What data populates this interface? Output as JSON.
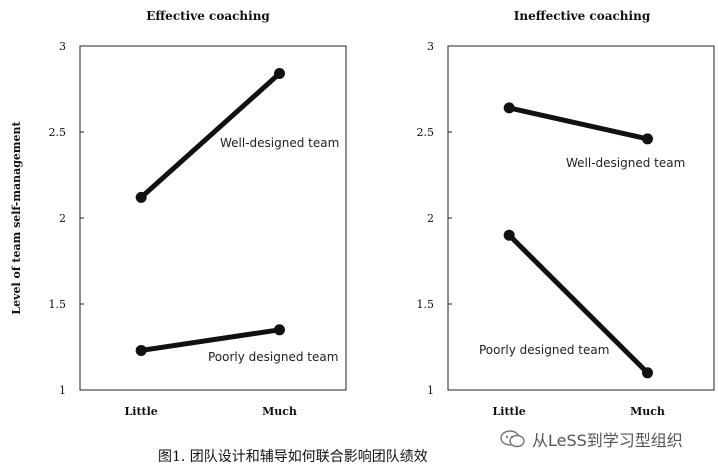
{
  "chart_data": [
    {
      "type": "line",
      "title": "Effective coaching",
      "ylabel": "Level of team self-management",
      "categories": [
        "Little",
        "Much"
      ],
      "ylim": [
        1,
        3
      ],
      "yticks": [
        "1",
        "1.5",
        "2",
        "2.5",
        "3"
      ],
      "yticks_values": [
        1,
        1.5,
        2,
        2.5,
        3
      ],
      "series": [
        {
          "name": "Well-designed team",
          "values": [
            2.12,
            2.84
          ]
        },
        {
          "name": "Poorly designed team",
          "values": [
            1.23,
            1.35
          ]
        }
      ]
    },
    {
      "type": "line",
      "title": "Ineffective coaching",
      "ylabel": "",
      "categories": [
        "Little",
        "Much"
      ],
      "ylim": [
        1,
        3
      ],
      "yticks": [
        "1",
        "1.5",
        "2",
        "2.5",
        "3"
      ],
      "yticks_values": [
        1,
        1.5,
        2,
        2.5,
        3
      ],
      "series": [
        {
          "name": "Well-designed team",
          "values": [
            2.64,
            2.46
          ]
        },
        {
          "name": "Poorly designed team",
          "values": [
            1.9,
            1.1
          ]
        }
      ]
    }
  ],
  "caption": "图1. 团队设计和辅导如何联合影响团队绩效",
  "watermark": "从LeSS到学习型组织",
  "colors": {
    "line": "#111111",
    "frame": "#222222"
  }
}
